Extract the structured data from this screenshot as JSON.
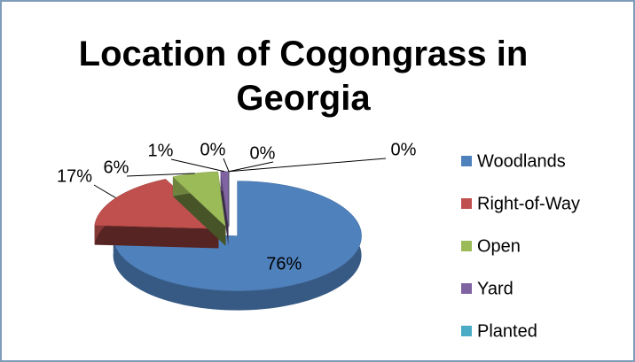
{
  "chart_data": {
    "type": "pie3d",
    "title": "Location of Cogongrass in Georgia",
    "categories": [
      "Woodlands",
      "Right-of-Way",
      "Open",
      "Yard",
      "Planted",
      null,
      null
    ],
    "values": [
      76,
      17,
      6,
      1,
      0,
      0,
      0
    ],
    "value_labels": [
      "76%",
      "17%",
      "6%",
      "1%",
      "0%",
      "0%",
      "0%"
    ],
    "colors": [
      "#4f81bd",
      "#c0504d",
      "#9bbb59",
      "#8064a2",
      "#4bacc6",
      "#f79646",
      "#2c4d75"
    ],
    "legend": "right"
  }
}
